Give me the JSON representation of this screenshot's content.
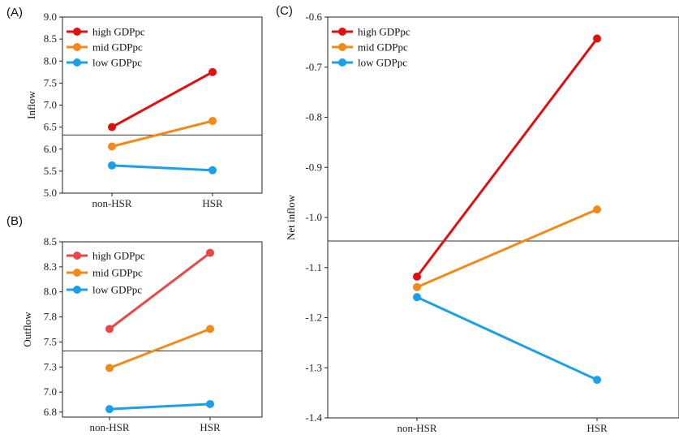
{
  "colors": {
    "high": "#e01010",
    "high_b": "#e84848",
    "mid": "#f28a1a",
    "low": "#1aa0e8"
  },
  "chart_data": [
    {
      "panel": "(A)",
      "type": "line",
      "ylabel": "Inflow",
      "categories": [
        "non-HSR",
        "HSR"
      ],
      "ylim": [
        5.0,
        9.0
      ],
      "yticks": [
        "5.0",
        "5.5",
        "6.0",
        "6.5",
        "7.0",
        "7.5",
        "8.0",
        "8.5",
        "9.0"
      ],
      "reference_line": 6.32,
      "series": [
        {
          "name": "high GDPpc",
          "color_key": "high",
          "values": [
            6.5,
            7.75
          ]
        },
        {
          "name": "mid GDPpc",
          "color_key": "mid",
          "values": [
            6.06,
            6.64
          ]
        },
        {
          "name": "low GDPpc",
          "color_key": "low",
          "values": [
            5.63,
            5.52
          ]
        }
      ],
      "legend": "top-left"
    },
    {
      "panel": "(B)",
      "type": "line",
      "ylabel": "Outflow",
      "categories": [
        "non-HSR",
        "HSR"
      ],
      "ylim": [
        6.75,
        8.5
      ],
      "yticks": [
        "6.8",
        "7.0",
        "7.3",
        "7.5",
        "7.8",
        "8.0",
        "8.3",
        "8.5"
      ],
      "ytick_values": [
        6.8,
        7.0,
        7.25,
        7.5,
        7.75,
        8.0,
        8.25,
        8.5
      ],
      "reference_line": 7.41,
      "series": [
        {
          "name": "high GDPpc",
          "color_key": "high_b",
          "values": [
            7.63,
            8.39
          ]
        },
        {
          "name": "mid GDPpc",
          "color_key": "mid",
          "values": [
            7.24,
            7.63
          ]
        },
        {
          "name": "low GDPpc",
          "color_key": "low",
          "values": [
            6.83,
            6.88
          ]
        }
      ],
      "legend": "top-left"
    },
    {
      "panel": "(C)",
      "type": "line",
      "ylabel": "Net inflow",
      "categories": [
        "non-HSR",
        "HSR"
      ],
      "ylim": [
        -1.4,
        -0.6
      ],
      "yticks": [
        "-1.4",
        "-1.3",
        "-1.2",
        "-1.1",
        "-1.0",
        "-0.9",
        "-0.8",
        "-0.7",
        "-0.6"
      ],
      "reference_line": -1.047,
      "series": [
        {
          "name": "high GDPpc",
          "color_key": "high",
          "values": [
            -1.118,
            -0.643
          ]
        },
        {
          "name": "mid GDPpc",
          "color_key": "mid",
          "values": [
            -1.139,
            -0.984
          ]
        },
        {
          "name": "low GDPpc",
          "color_key": "low",
          "values": [
            -1.159,
            -1.324
          ]
        }
      ],
      "legend": "top-left"
    }
  ]
}
